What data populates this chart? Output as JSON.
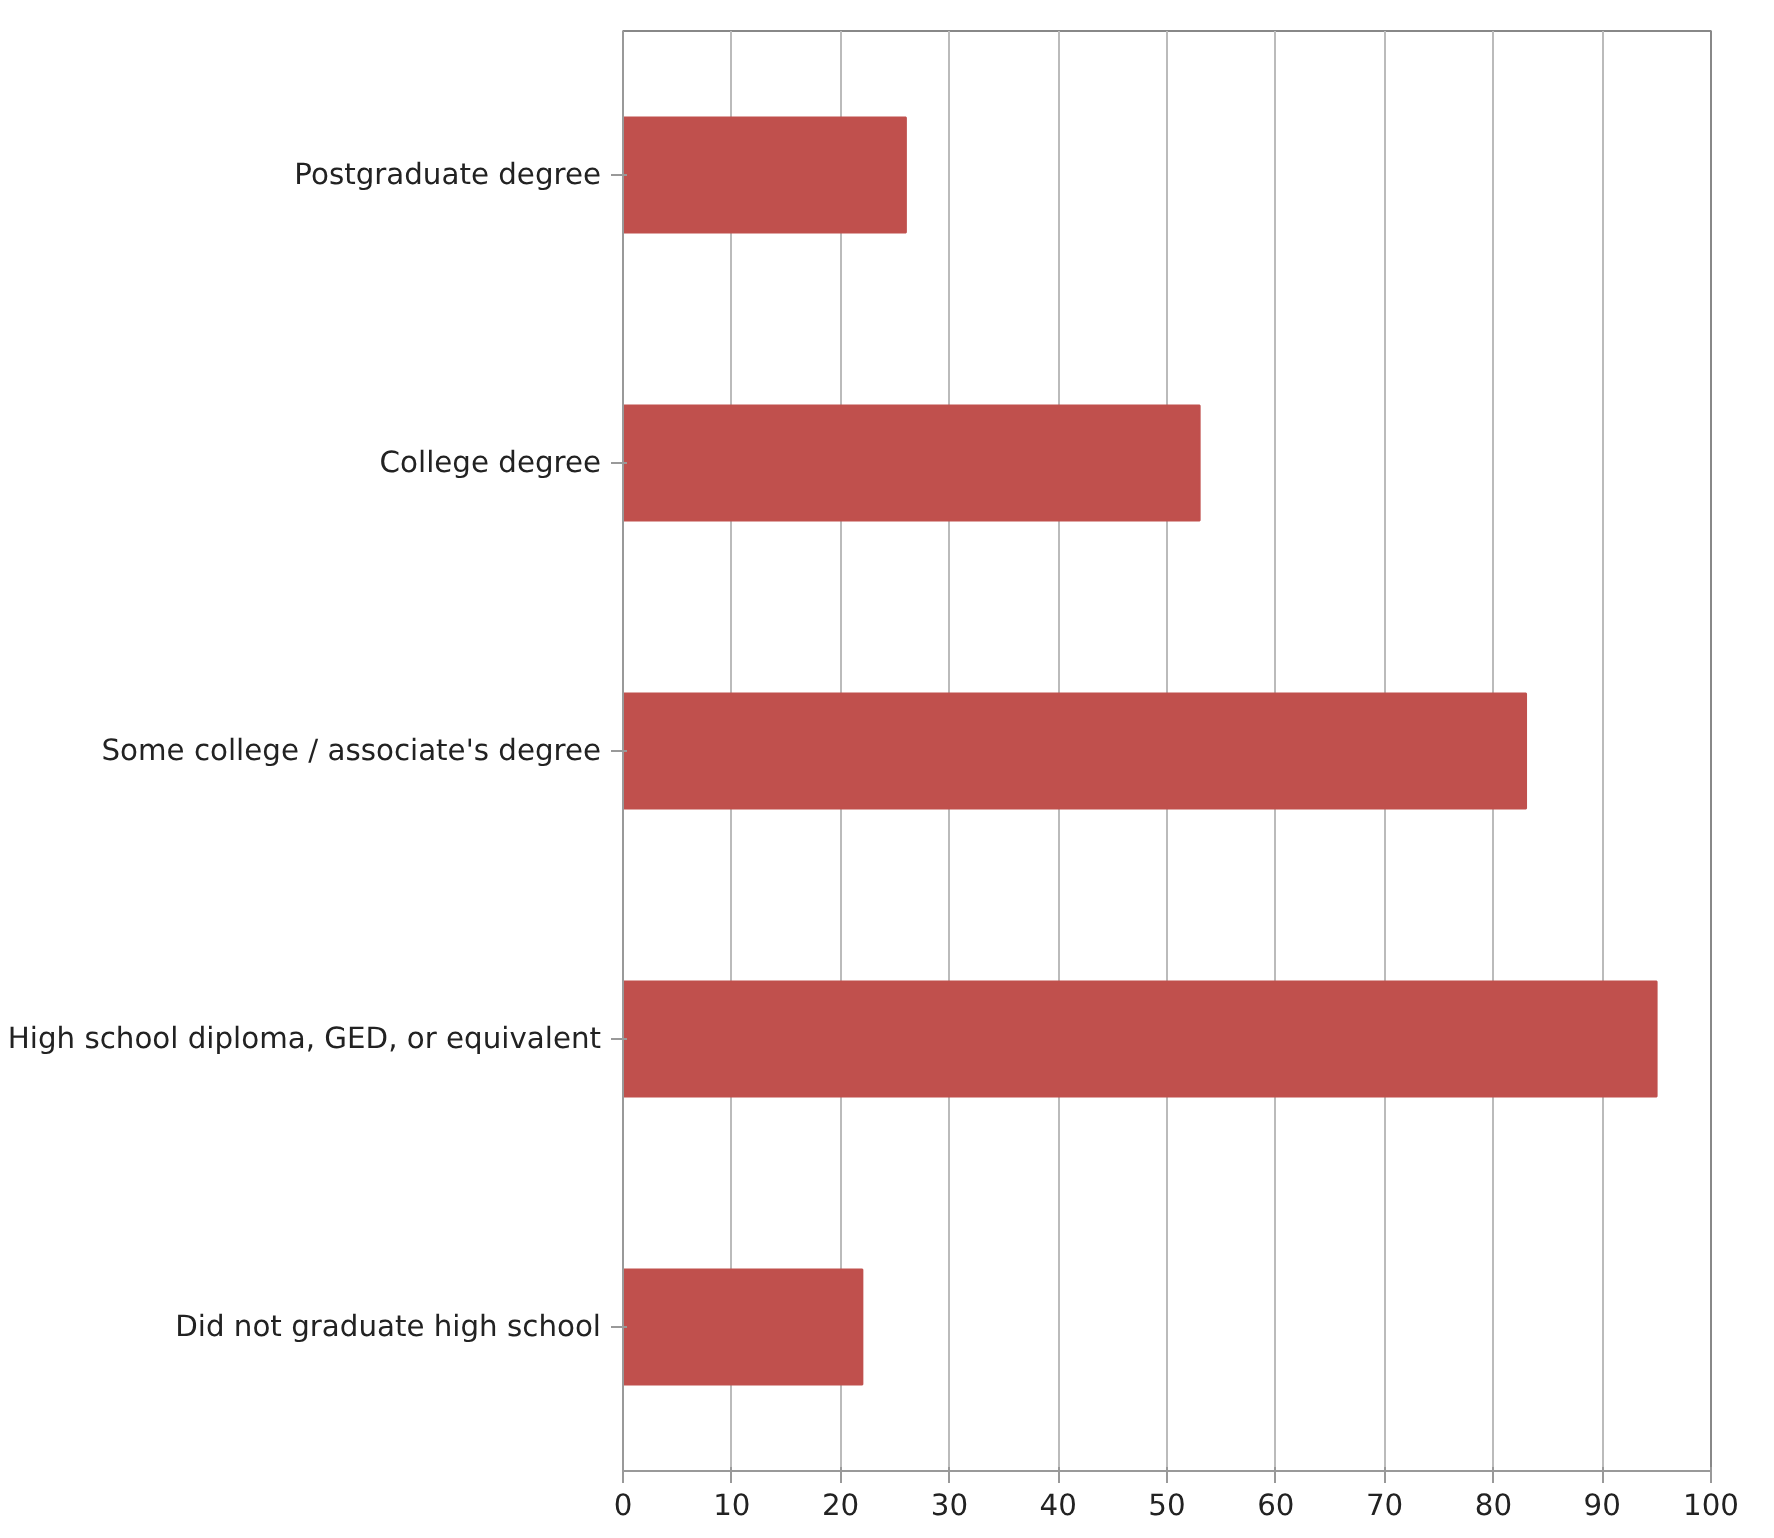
{
  "chart_data": {
    "type": "bar",
    "orientation": "horizontal",
    "categories": [
      "Postgraduate degree",
      "College degree",
      "Some college / associate's degree",
      "High school diploma, GED, or equivalent",
      "Did not graduate high school"
    ],
    "values": [
      26,
      53,
      83,
      95,
      22
    ],
    "color": "#c0504d",
    "xlim": [
      0,
      100
    ],
    "xticks": [
      0,
      10,
      20,
      30,
      40,
      50,
      60,
      70,
      80,
      90,
      100
    ],
    "grid": "x"
  }
}
